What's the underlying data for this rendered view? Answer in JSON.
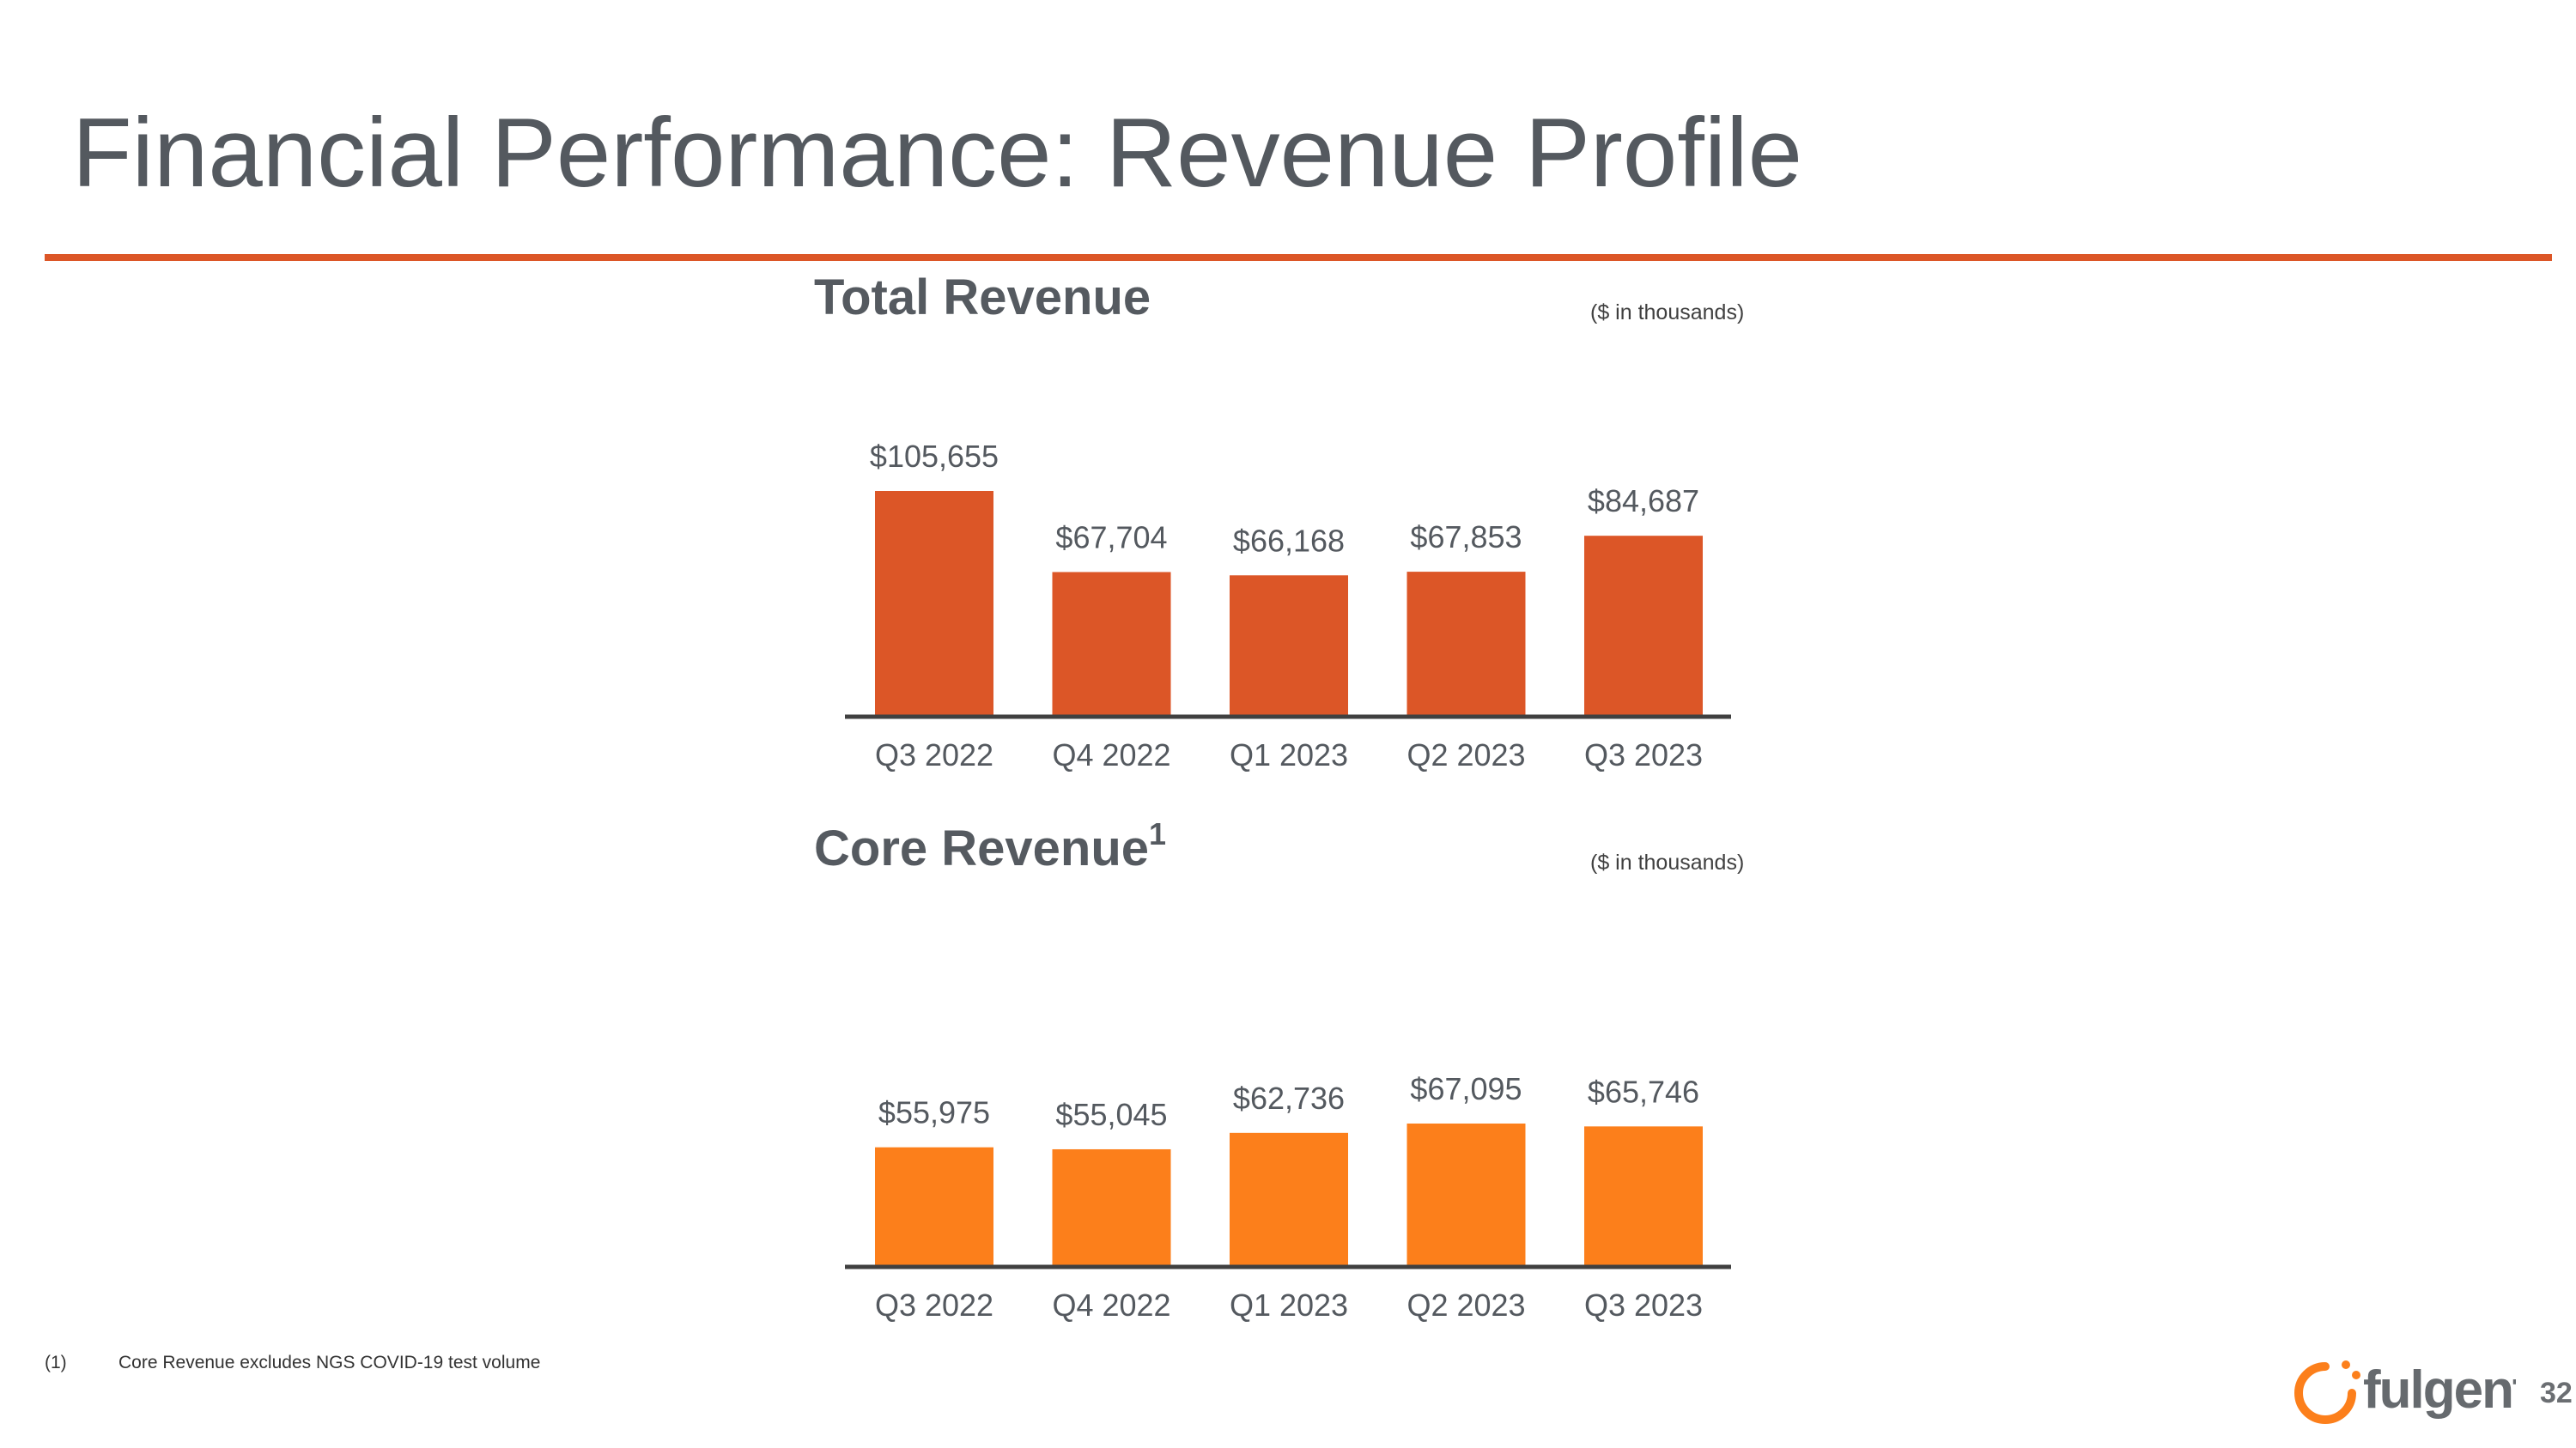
{
  "slide": {
    "title": "Financial Performance: Revenue Profile",
    "page_number": "32",
    "logo_text": "fulgent",
    "footnote": {
      "marker": "(1)",
      "text": "Core Revenue excludes NGS COVID-19 test volume"
    }
  },
  "colors": {
    "accent": "#dc5627",
    "total_bar": "#dc5627",
    "core_bar": "#fc7f1b",
    "text": "#54595f",
    "axis": "#404040"
  },
  "chart_data": [
    {
      "type": "bar",
      "title": "Total Revenue",
      "unit_note": "($ in thousands)",
      "categories": [
        "Q3 2022",
        "Q4 2022",
        "Q1 2023",
        "Q2 2023",
        "Q3 2023"
      ],
      "values": [
        105655,
        67704,
        66168,
        67853,
        84687
      ],
      "labels": [
        "$105,655",
        "$67,704",
        "$66,168",
        "$67,853",
        "$84,687"
      ],
      "xlabel": "",
      "ylabel": "",
      "ylim": [
        0,
        110000
      ],
      "grid": false,
      "legend": "none"
    },
    {
      "type": "bar",
      "title": "Core Revenue",
      "title_superscript": "1",
      "unit_note": "($ in thousands)",
      "categories": [
        "Q3 2022",
        "Q4 2022",
        "Q1 2023",
        "Q2 2023",
        "Q3 2023"
      ],
      "values": [
        55975,
        55045,
        62736,
        67095,
        65746
      ],
      "labels": [
        "$55,975",
        "$55,045",
        "$62,736",
        "$67,095",
        "$65,746"
      ],
      "xlabel": "",
      "ylabel": "",
      "ylim": [
        0,
        110000
      ],
      "grid": false,
      "legend": "none"
    }
  ]
}
